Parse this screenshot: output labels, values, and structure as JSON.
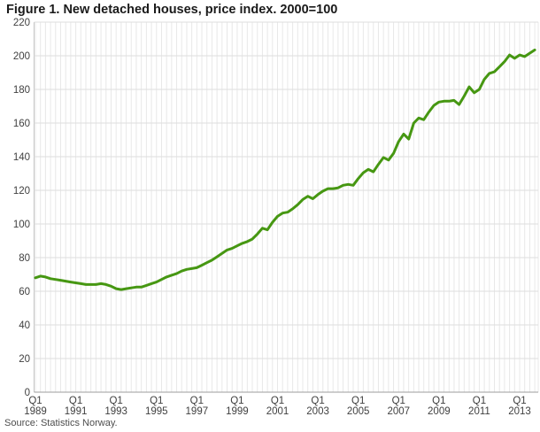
{
  "title": "Figure 1. New detached houses, price index. 2000=100",
  "source": "Source: Statistics Norway.",
  "colors": {
    "line": "#469712",
    "grid_vertical": "#e8e8e8",
    "grid_horizontal": "#dedede",
    "axis_zero_line": "#9e9e9e",
    "axis_left_line": "#c4c4c4",
    "tick_text": "#404040",
    "title_text": "#1a1a1a",
    "source_text": "#4d4d4d",
    "background": "#ffffff"
  },
  "chart_data": {
    "type": "line",
    "title": "Figure 1. New detached houses, price index. 2000=100",
    "xlabel": "",
    "ylabel": "",
    "frequency": "quarterly",
    "start_period": "1989-Q1",
    "end_period": "2013-Q4",
    "ylim": [
      0,
      220
    ],
    "y_tick_step": 20,
    "y_ticks": [
      0,
      20,
      40,
      60,
      80,
      100,
      120,
      140,
      160,
      180,
      200,
      220
    ],
    "x_tick_interval_quarters": 8,
    "x_tick_labels": [
      "Q1 1989",
      "Q1 1991",
      "Q1 1993",
      "Q1 1995",
      "Q1 1997",
      "Q1 1999",
      "Q1 2001",
      "Q1 2003",
      "Q1 2005",
      "Q1 2007",
      "Q1 2009",
      "Q1 2011",
      "Q1 2013"
    ],
    "grid": "on",
    "legend": "none",
    "series": [
      {
        "name": "New detached houses, price index (2000=100)",
        "color": "#469712",
        "values": [
          68,
          69,
          68.5,
          67.5,
          67,
          66.5,
          66,
          65.5,
          65,
          64.5,
          64,
          64,
          64,
          64.5,
          64,
          63,
          61.5,
          61,
          61.5,
          62,
          62.5,
          62.5,
          63.5,
          64.5,
          65.5,
          67,
          68.5,
          69.5,
          70.5,
          72,
          73,
          73.5,
          74,
          75.5,
          77,
          78.5,
          80.5,
          82.5,
          84.5,
          85.5,
          87,
          88.5,
          89.5,
          91,
          94,
          97.5,
          96.5,
          101,
          104.5,
          106.5,
          107,
          109,
          111.5,
          114.5,
          116.5,
          115,
          117.5,
          119.5,
          121,
          121,
          121.5,
          123,
          123.5,
          123,
          127,
          130.5,
          132.5,
          131,
          135.5,
          139.5,
          138,
          142,
          149,
          153.5,
          150.5,
          160,
          163,
          162,
          166.5,
          170.5,
          172.5,
          173,
          173,
          173.5,
          171,
          176,
          181.5,
          178,
          180,
          186,
          189.5,
          190.5,
          193.5,
          196.5,
          200.5,
          198.5,
          200.5,
          199.5,
          201.5,
          203.5
        ]
      }
    ]
  }
}
